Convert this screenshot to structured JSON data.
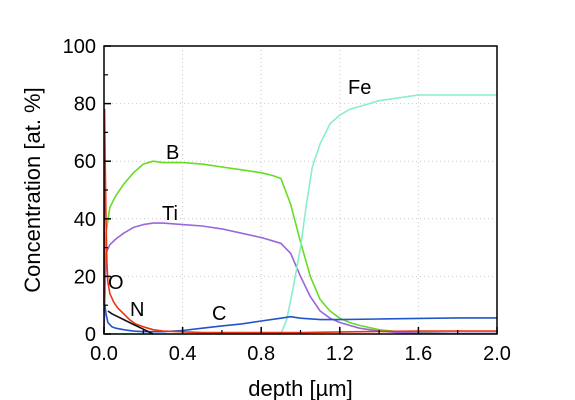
{
  "chart_data": {
    "type": "line",
    "title": "",
    "xlabel": "depth [µm]",
    "ylabel": "Concentration [at. %]",
    "xlim": [
      0.0,
      2.0
    ],
    "ylim": [
      0,
      100
    ],
    "xticks": [
      "0.0",
      "0.4",
      "0.8",
      "1.2",
      "1.6",
      "2.0"
    ],
    "yticks": [
      "0",
      "20",
      "40",
      "60",
      "80",
      "100"
    ],
    "grid": true,
    "series": [
      {
        "name": "B",
        "color": "#66dd22",
        "x": [
          0.0,
          0.01,
          0.03,
          0.06,
          0.1,
          0.15,
          0.2,
          0.25,
          0.3,
          0.4,
          0.5,
          0.6,
          0.7,
          0.8,
          0.86,
          0.9,
          0.95,
          1.0,
          1.05,
          1.1,
          1.15,
          1.2,
          1.25,
          1.3,
          1.4,
          1.5,
          1.6,
          1.7,
          1.8,
          2.0
        ],
        "y": [
          0,
          35,
          44,
          48,
          52,
          56,
          59,
          60,
          59.5,
          59.5,
          59,
          58,
          57,
          56,
          55,
          54,
          45,
          32,
          20,
          12,
          8,
          5.5,
          4,
          3,
          1.5,
          0.8,
          0.5,
          0.3,
          0.2,
          0.2
        ]
      },
      {
        "name": "Ti",
        "color": "#9966dd",
        "x": [
          0.0,
          0.01,
          0.03,
          0.06,
          0.1,
          0.15,
          0.2,
          0.25,
          0.3,
          0.4,
          0.5,
          0.6,
          0.7,
          0.8,
          0.9,
          0.95,
          1.0,
          1.05,
          1.1,
          1.15,
          1.2,
          1.25,
          1.3,
          1.4,
          1.5,
          1.6,
          1.8,
          2.0
        ],
        "y": [
          0,
          28,
          31,
          33,
          35,
          37,
          38,
          38.5,
          38.5,
          38,
          37.5,
          36.5,
          35,
          33.5,
          31.5,
          28,
          20,
          13,
          8,
          5.5,
          4,
          3,
          2,
          1,
          0.5,
          0.3,
          0.2,
          0.2
        ]
      },
      {
        "name": "Fe",
        "color": "#88eecc",
        "x": [
          0.0,
          0.9,
          0.93,
          0.96,
          1.0,
          1.03,
          1.06,
          1.1,
          1.15,
          1.2,
          1.25,
          1.3,
          1.4,
          1.5,
          1.6,
          1.8,
          2.0
        ],
        "y": [
          0,
          0,
          5,
          15,
          30,
          45,
          58,
          66,
          73,
          76,
          78,
          79,
          81,
          82,
          83,
          83,
          83
        ]
      },
      {
        "name": "C",
        "color": "#2255cc",
        "x": [
          0.0,
          0.005,
          0.01,
          0.02,
          0.04,
          0.06,
          0.1,
          0.15,
          0.2,
          0.3,
          0.4,
          0.5,
          0.6,
          0.7,
          0.8,
          0.9,
          0.95,
          1.0,
          1.1,
          1.2,
          1.4,
          1.6,
          1.8,
          2.0
        ],
        "y": [
          8,
          10,
          7,
          4,
          2.5,
          2,
          1.5,
          1,
          0.8,
          0.8,
          1.2,
          2,
          2.8,
          3.5,
          4.5,
          5.5,
          6,
          5.5,
          5,
          5,
          5.2,
          5.4,
          5.6,
          5.6
        ]
      },
      {
        "name": "O",
        "color": "#ee3311",
        "x": [
          0.0,
          0.003,
          0.006,
          0.01,
          0.015,
          0.02,
          0.03,
          0.05,
          0.07,
          0.1,
          0.13,
          0.16,
          0.2,
          0.25,
          0.3,
          0.5,
          0.8,
          1.0,
          1.3,
          1.6,
          1.8,
          2.0
        ],
        "y": [
          10,
          78,
          60,
          40,
          25,
          18,
          14,
          11,
          9,
          7,
          5,
          3.5,
          2.5,
          1.5,
          1,
          0.5,
          0.5,
          0.5,
          0.8,
          1,
          1,
          1
        ]
      },
      {
        "name": "N",
        "color": "#111111",
        "x": [
          0.02,
          0.04,
          0.07,
          0.1,
          0.13,
          0.16,
          0.19,
          0.22,
          0.25
        ],
        "y": [
          8,
          7,
          6,
          5,
          4,
          3,
          2,
          1,
          0
        ]
      }
    ]
  }
}
